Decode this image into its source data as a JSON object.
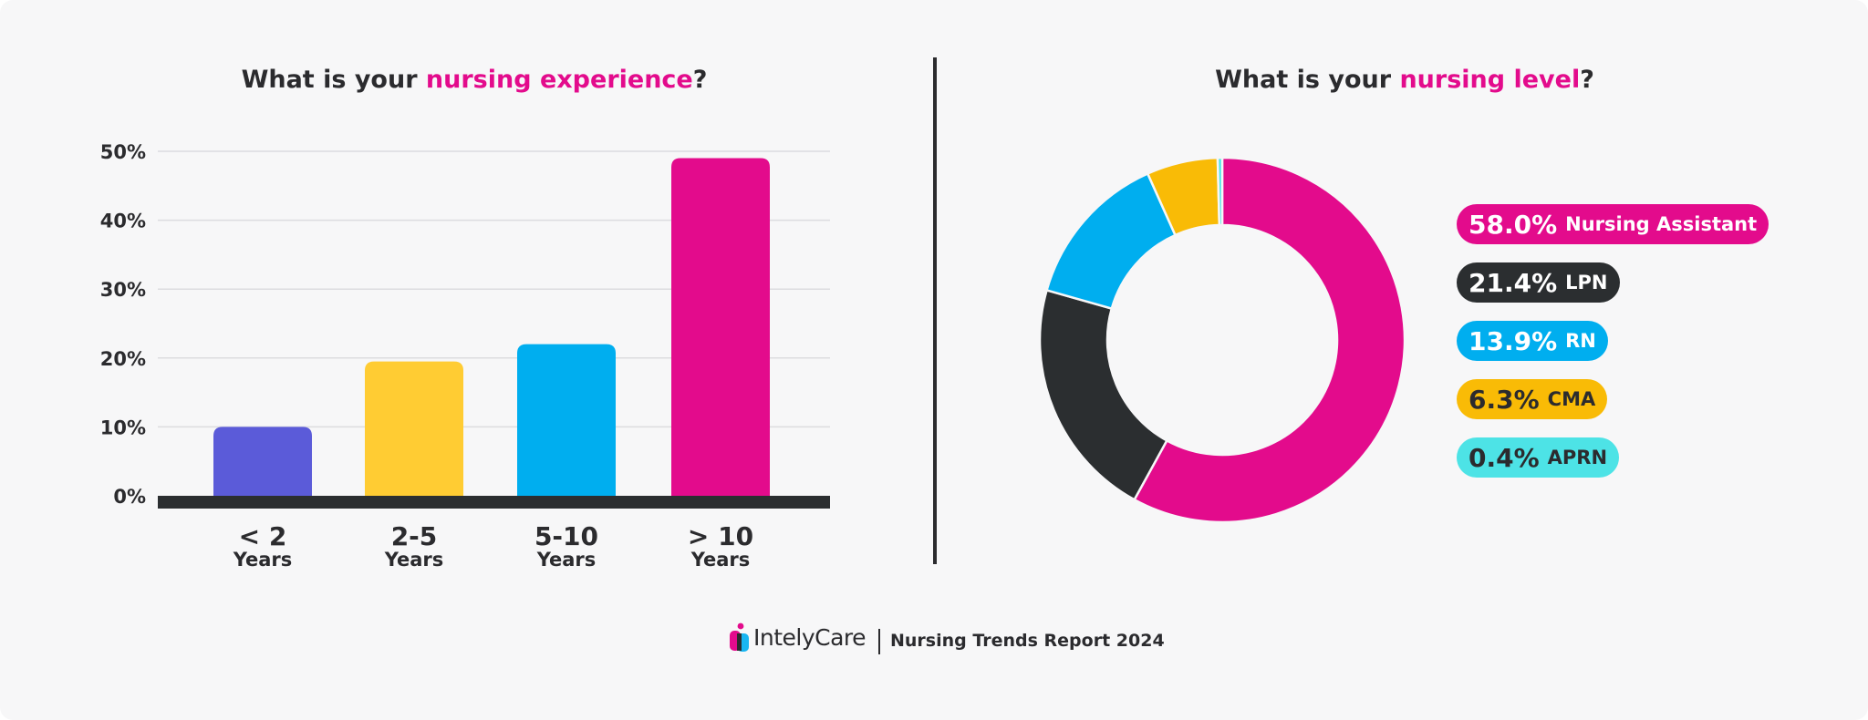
{
  "colors": {
    "highlight": "#e30b8c",
    "text": "#2b2b2e",
    "purple": "#5b5bd9",
    "yellow": "#ffcc33",
    "blue": "#00aeef",
    "magenta": "#e30b8c",
    "dark": "#2b2e30",
    "cma": "#f9bb06",
    "aprn": "#4de3e6"
  },
  "left": {
    "title_pre": "What is your ",
    "title_hl": "nursing experience",
    "title_post": "?"
  },
  "right": {
    "title_pre": "What is your ",
    "title_hl": "nursing level",
    "title_post": "?"
  },
  "chart_data": [
    {
      "type": "bar",
      "title": "What is your nursing experience?",
      "categories": [
        [
          "< 2",
          "Years"
        ],
        [
          "2-5",
          "Years"
        ],
        [
          "5-10",
          "Years"
        ],
        [
          "> 10",
          "Years"
        ]
      ],
      "values": [
        10,
        19.5,
        22,
        49
      ],
      "yticks": [
        "0%",
        "10%",
        "20%",
        "30%",
        "40%",
        "50%"
      ],
      "ylim": [
        0,
        50
      ],
      "grid": true,
      "bar_colors": [
        "#5b5bd9",
        "#ffcc33",
        "#00aeef",
        "#e30b8c"
      ]
    },
    {
      "type": "pie",
      "subtype": "donut",
      "title": "What is your nursing level?",
      "legend_position": "right",
      "slices": [
        {
          "label": "Nursing Assistant",
          "value": 58.0,
          "display": "58.0%",
          "color": "#e30b8c",
          "text_color": "#ffffff"
        },
        {
          "label": "LPN",
          "value": 21.4,
          "display": "21.4%",
          "color": "#2b2e30",
          "text_color": "#ffffff"
        },
        {
          "label": "RN",
          "value": 13.9,
          "display": "13.9%",
          "color": "#00aeef",
          "text_color": "#ffffff"
        },
        {
          "label": "CMA",
          "value": 6.3,
          "display": "6.3%",
          "color": "#f9bb06",
          "text_color": "#2b2b2e"
        },
        {
          "label": "APRN",
          "value": 0.4,
          "display": "0.4%",
          "color": "#4de3e6",
          "text_color": "#2b2b2e"
        }
      ]
    }
  ],
  "footer": {
    "brand": "IntelyCare",
    "report": "Nursing Trends Report 2024"
  }
}
